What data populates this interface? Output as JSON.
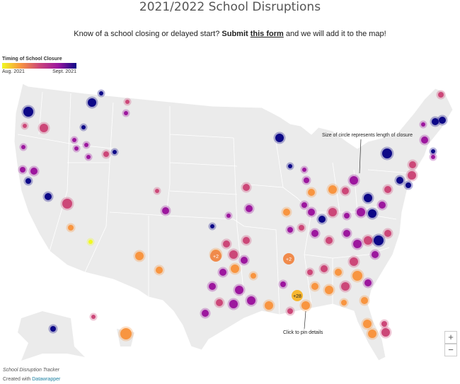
{
  "title": "2021/2022 School Disruptions",
  "intro": {
    "before": "Know of a school closing or delayed start?  ",
    "submit": "Submit",
    "link": "this form",
    "after": " and we will add it to the map!"
  },
  "legend": {
    "title": "Timing of School Closure",
    "start": "Aug. 2021",
    "end": "Sept. 2021",
    "colors": [
      "#f0f921",
      "#f89540",
      "#cc4778",
      "#9c179e",
      "#0d0887"
    ]
  },
  "annotations": {
    "size": "Size of circle represents length of closure",
    "pin": "Click to pin details"
  },
  "clusters": [
    "+2",
    "+2",
    "+28"
  ],
  "controls": {
    "zoom_in": "+",
    "zoom_out": "−"
  },
  "footer": {
    "source": "School Disruption Tracker",
    "created": "Created with ",
    "brand": "Datawrapper"
  },
  "colors": {
    "land": "#ebebeb",
    "border": "#ffffff",
    "brand_link": "#1d81a2"
  }
}
